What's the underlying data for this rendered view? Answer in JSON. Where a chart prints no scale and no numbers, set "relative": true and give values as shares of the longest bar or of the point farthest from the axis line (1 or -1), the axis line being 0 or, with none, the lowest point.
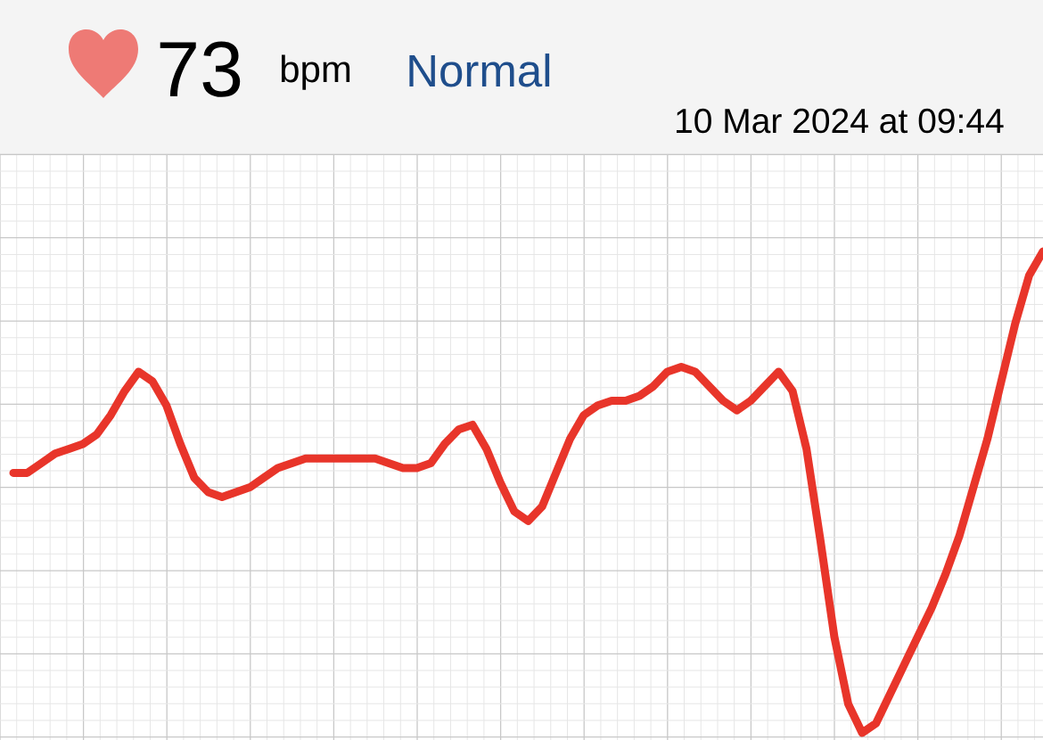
{
  "chart_data": {
    "type": "line",
    "title": "73",
    "annotations": [
      "bpm",
      "Normal",
      "10 Mar 2024 at 09:44"
    ],
    "relative": true,
    "grid": true,
    "categories": [
      null,
      null,
      null,
      null,
      null,
      null,
      null,
      null,
      null,
      null,
      null,
      null,
      null,
      null,
      null,
      null,
      null,
      null,
      null,
      null,
      null,
      null,
      null,
      null,
      null,
      null,
      null,
      null,
      null,
      null,
      null,
      null,
      null,
      null,
      null,
      null,
      null,
      null,
      null,
      null,
      null,
      null,
      null,
      null,
      null,
      null,
      null,
      null,
      null,
      null,
      null,
      null,
      null,
      null,
      null,
      null,
      null,
      null,
      null,
      null,
      null,
      null,
      null,
      null,
      null,
      null,
      null,
      null,
      null,
      null,
      null,
      null,
      null,
      null,
      null
    ],
    "series": [
      {
        "color": "#e8352a",
        "values": [
          0.54,
          0.54,
          0.56,
          0.58,
          0.59,
          0.6,
          0.62,
          0.66,
          0.71,
          0.75,
          0.73,
          0.68,
          0.6,
          0.53,
          0.5,
          0.49,
          0.5,
          0.51,
          0.53,
          0.55,
          0.56,
          0.57,
          0.57,
          0.57,
          0.57,
          0.57,
          0.57,
          0.56,
          0.55,
          0.55,
          0.56,
          0.6,
          0.63,
          0.64,
          0.59,
          0.52,
          0.46,
          0.44,
          0.47,
          0.54,
          0.61,
          0.66,
          0.68,
          0.69,
          0.69,
          0.7,
          0.72,
          0.75,
          0.76,
          0.75,
          0.72,
          0.69,
          0.67,
          0.69,
          0.72,
          0.75,
          0.71,
          0.59,
          0.4,
          0.2,
          0.06,
          0,
          0.02,
          0.08,
          0.14,
          0.2,
          0.26,
          0.33,
          0.41,
          0.51,
          0.61,
          0.73,
          0.85,
          0.95,
          1
        ]
      }
    ]
  }
}
